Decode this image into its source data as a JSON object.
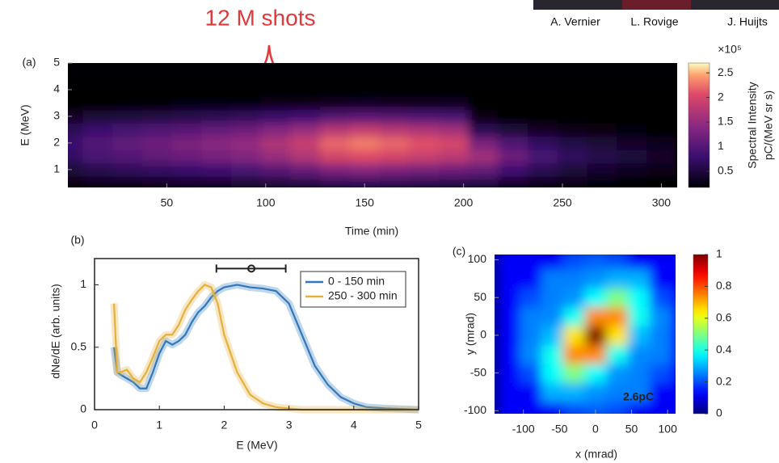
{
  "annotation": "12 M shots",
  "people": [
    "A. Vernier",
    "L. Rovige",
    "J. Huijts"
  ],
  "chart_data": [
    {
      "type": "heatmap",
      "panel_label": "(a)",
      "x_label": "Time (min)",
      "y_label": "E (MeV)",
      "x": [
        0,
        15,
        30,
        45,
        60,
        75,
        90,
        105,
        120,
        135,
        150,
        165,
        180,
        195,
        210,
        225,
        240,
        255,
        270,
        285,
        300
      ],
      "y": [
        0.5,
        1,
        1.5,
        2,
        2.5,
        3,
        3.5,
        4
      ],
      "z": [
        [
          0.24,
          0.3,
          0.33,
          0.36,
          0.39,
          0.42,
          0.45,
          0.51,
          0.57,
          0.66,
          0.69,
          0.66,
          0.63,
          0.6,
          0.56,
          0.42,
          0.32,
          0.25,
          0.21,
          0.18,
          0.14
        ],
        [
          0.48,
          0.6,
          0.66,
          0.72,
          0.78,
          0.84,
          0.9,
          1.02,
          1.14,
          1.32,
          1.38,
          1.32,
          1.26,
          1.2,
          1.12,
          0.84,
          0.63,
          0.49,
          0.42,
          0.35,
          0.28
        ],
        [
          0.72,
          0.9,
          0.99,
          1.08,
          1.17,
          1.26,
          1.35,
          1.53,
          1.71,
          1.98,
          2.07,
          1.98,
          1.89,
          1.8,
          1.6,
          1.2,
          0.9,
          0.7,
          0.6,
          0.5,
          0.4
        ],
        [
          0.8,
          1.0,
          1.1,
          1.2,
          1.3,
          1.4,
          1.5,
          1.7,
          1.9,
          2.2,
          2.3,
          2.2,
          2.1,
          2.0,
          1.28,
          0.96,
          0.72,
          0.56,
          0.48,
          0.4,
          0.32
        ],
        [
          0.64,
          0.8,
          0.88,
          0.96,
          1.04,
          1.12,
          1.2,
          1.36,
          1.52,
          1.76,
          1.84,
          1.76,
          1.68,
          1.6,
          0.64,
          0.48,
          0.36,
          0.28,
          0.24,
          0.2,
          0.16
        ],
        [
          0.36,
          0.45,
          0.5,
          0.54,
          0.59,
          0.63,
          0.68,
          0.77,
          0.86,
          0.99,
          1.04,
          0.99,
          0.95,
          0.9,
          0.24,
          0.18,
          0.14,
          0.11,
          0.09,
          0.08,
          0.06
        ],
        [
          0.12,
          0.15,
          0.17,
          0.18,
          0.2,
          0.21,
          0.23,
          0.26,
          0.29,
          0.33,
          0.35,
          0.33,
          0.32,
          0.3,
          0.05,
          0.04,
          0.03,
          0.02,
          0.02,
          0.02,
          0.01
        ],
        [
          0.02,
          0.03,
          0.03,
          0.04,
          0.04,
          0.04,
          0.05,
          0.05,
          0.06,
          0.07,
          0.07,
          0.07,
          0.06,
          0.06,
          0.01,
          0.01,
          0.01,
          0.01,
          0.01,
          0.01,
          0.01
        ]
      ],
      "xlim": [
        0,
        308
      ],
      "ylim": [
        0.33,
        5
      ],
      "xticks": [
        50,
        100,
        150,
        200,
        250,
        300
      ],
      "yticks": [
        1,
        2,
        3,
        4,
        5
      ],
      "colormap": "magma",
      "zlim": [
        0.17,
        2.7
      ],
      "colorbar_ticks": [
        0.5,
        1,
        1.5,
        2,
        2.5
      ],
      "colorbar_scale_label": "×10⁵",
      "colorbar_label": [
        "Spectral Intensity",
        "pC/(MeV sr s)"
      ]
    },
    {
      "type": "line",
      "panel_label": "(b)",
      "x_label": "E (MeV)",
      "y_label": "dNe/dE (arb. units)",
      "x": [
        0.3,
        0.35,
        0.4,
        0.5,
        0.6,
        0.7,
        0.8,
        0.9,
        1.0,
        1.1,
        1.2,
        1.3,
        1.4,
        1.5,
        1.6,
        1.7,
        1.8,
        1.9,
        2.0,
        2.2,
        2.4,
        2.6,
        2.8,
        3.0,
        3.2,
        3.4,
        3.6,
        3.8,
        4.0,
        4.2,
        4.5,
        5.0
      ],
      "series": [
        {
          "name": "0 - 150 min",
          "color": "#2f78bd",
          "values": [
            0.5,
            0.3,
            0.28,
            0.25,
            0.22,
            0.17,
            0.17,
            0.3,
            0.45,
            0.55,
            0.52,
            0.55,
            0.6,
            0.7,
            0.78,
            0.83,
            0.9,
            0.95,
            0.98,
            1.0,
            0.98,
            0.97,
            0.95,
            0.85,
            0.6,
            0.35,
            0.2,
            0.1,
            0.05,
            0.02,
            0.01,
            0.0
          ]
        },
        {
          "name": "250 - 300 min",
          "color": "#e6b03a",
          "values": [
            0.85,
            0.3,
            0.3,
            0.32,
            0.25,
            0.22,
            0.3,
            0.42,
            0.55,
            0.6,
            0.6,
            0.68,
            0.8,
            0.88,
            0.95,
            1.0,
            0.98,
            0.85,
            0.6,
            0.3,
            0.12,
            0.05,
            0.02,
            0.01,
            0.0,
            0.0,
            0.0,
            0.0,
            0.0,
            0.0,
            0.0,
            0.0
          ]
        }
      ],
      "xlim": [
        0,
        5
      ],
      "ylim": [
        0,
        1.21
      ],
      "xticks": [
        0,
        1,
        2,
        3,
        4,
        5
      ],
      "yticks": [
        0,
        0.5,
        1
      ],
      "legend": "upper right",
      "errorbar": {
        "x": 2.42,
        "low": 1.88,
        "high": 2.95,
        "y": 1.13
      }
    },
    {
      "type": "heatmap",
      "panel_label": "(c)",
      "x_label": "x (mrad)",
      "y_label": "y (mrad)",
      "annotation": "2.6pC",
      "x": [
        -120,
        -90,
        -60,
        -30,
        0,
        30,
        60,
        90,
        120
      ],
      "y": [
        -100,
        -75,
        -50,
        -25,
        0,
        25,
        50,
        75,
        100
      ],
      "z": [
        [
          0.12,
          0.12,
          0.12,
          0.2,
          0.22,
          0.2,
          0.12,
          0.12,
          0.12
        ],
        [
          0.12,
          0.12,
          0.3,
          0.3,
          0.27,
          0.25,
          0.25,
          0.12,
          0.12
        ],
        [
          0.12,
          0.2,
          0.38,
          0.5,
          0.38,
          0.27,
          0.25,
          0.2,
          0.12
        ],
        [
          0.12,
          0.26,
          0.39,
          0.74,
          0.74,
          0.39,
          0.26,
          0.25,
          0.12
        ],
        [
          0.12,
          0.25,
          0.31,
          0.65,
          1,
          0.65,
          0.31,
          0.25,
          0.12
        ],
        [
          0.12,
          0.25,
          0.26,
          0.39,
          0.74,
          0.74,
          0.39,
          0.26,
          0.12
        ],
        [
          0.12,
          0.2,
          0.25,
          0.27,
          0.38,
          0.5,
          0.38,
          0.2,
          0.12
        ],
        [
          0.12,
          0.12,
          0.25,
          0.25,
          0.27,
          0.3,
          0.3,
          0.12,
          0.12
        ],
        [
          0.12,
          0.12,
          0.12,
          0.2,
          0.22,
          0.2,
          0.12,
          0.12,
          0.12
        ]
      ],
      "xlim": [
        -140,
        111
      ],
      "ylim": [
        -104,
        107
      ],
      "xticks": [
        -100,
        -50,
        0,
        50,
        100
      ],
      "yticks": [
        -100,
        -50,
        0,
        50,
        100
      ],
      "colormap": "jet",
      "zlim": [
        0,
        1
      ],
      "colorbar_ticks": [
        0,
        0.2,
        0.4,
        0.6,
        0.8,
        1
      ]
    }
  ]
}
